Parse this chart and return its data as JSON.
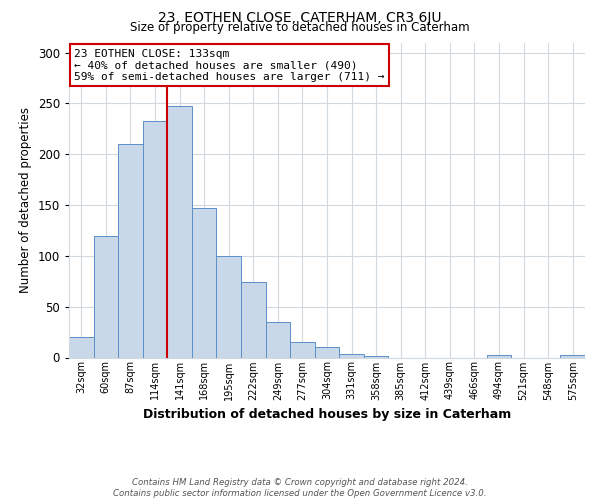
{
  "title": "23, EOTHEN CLOSE, CATERHAM, CR3 6JU",
  "subtitle": "Size of property relative to detached houses in Caterham",
  "xlabel": "Distribution of detached houses by size in Caterham",
  "ylabel": "Number of detached properties",
  "bin_labels": [
    "32sqm",
    "60sqm",
    "87sqm",
    "114sqm",
    "141sqm",
    "168sqm",
    "195sqm",
    "222sqm",
    "249sqm",
    "277sqm",
    "304sqm",
    "331sqm",
    "358sqm",
    "385sqm",
    "412sqm",
    "439sqm",
    "466sqm",
    "494sqm",
    "521sqm",
    "548sqm",
    "575sqm"
  ],
  "bin_values": [
    20,
    120,
    210,
    233,
    248,
    147,
    100,
    74,
    35,
    15,
    10,
    3,
    1,
    0,
    0,
    0,
    0,
    2,
    0,
    0,
    2
  ],
  "bar_color": "#c8d8e8",
  "bar_edge_color": "#5b8fc9",
  "vline_color": "#cc0000",
  "vline_x_index": 3.5,
  "annotation_title": "23 EOTHEN CLOSE: 133sqm",
  "annotation_line1": "← 40% of detached houses are smaller (490)",
  "annotation_line2": "59% of semi-detached houses are larger (711) →",
  "annotation_box_edgecolor": "#cc0000",
  "ylim": [
    0,
    310
  ],
  "yticks": [
    0,
    50,
    100,
    150,
    200,
    250,
    300
  ],
  "footer1": "Contains HM Land Registry data © Crown copyright and database right 2024.",
  "footer2": "Contains public sector information licensed under the Open Government Licence v3.0."
}
